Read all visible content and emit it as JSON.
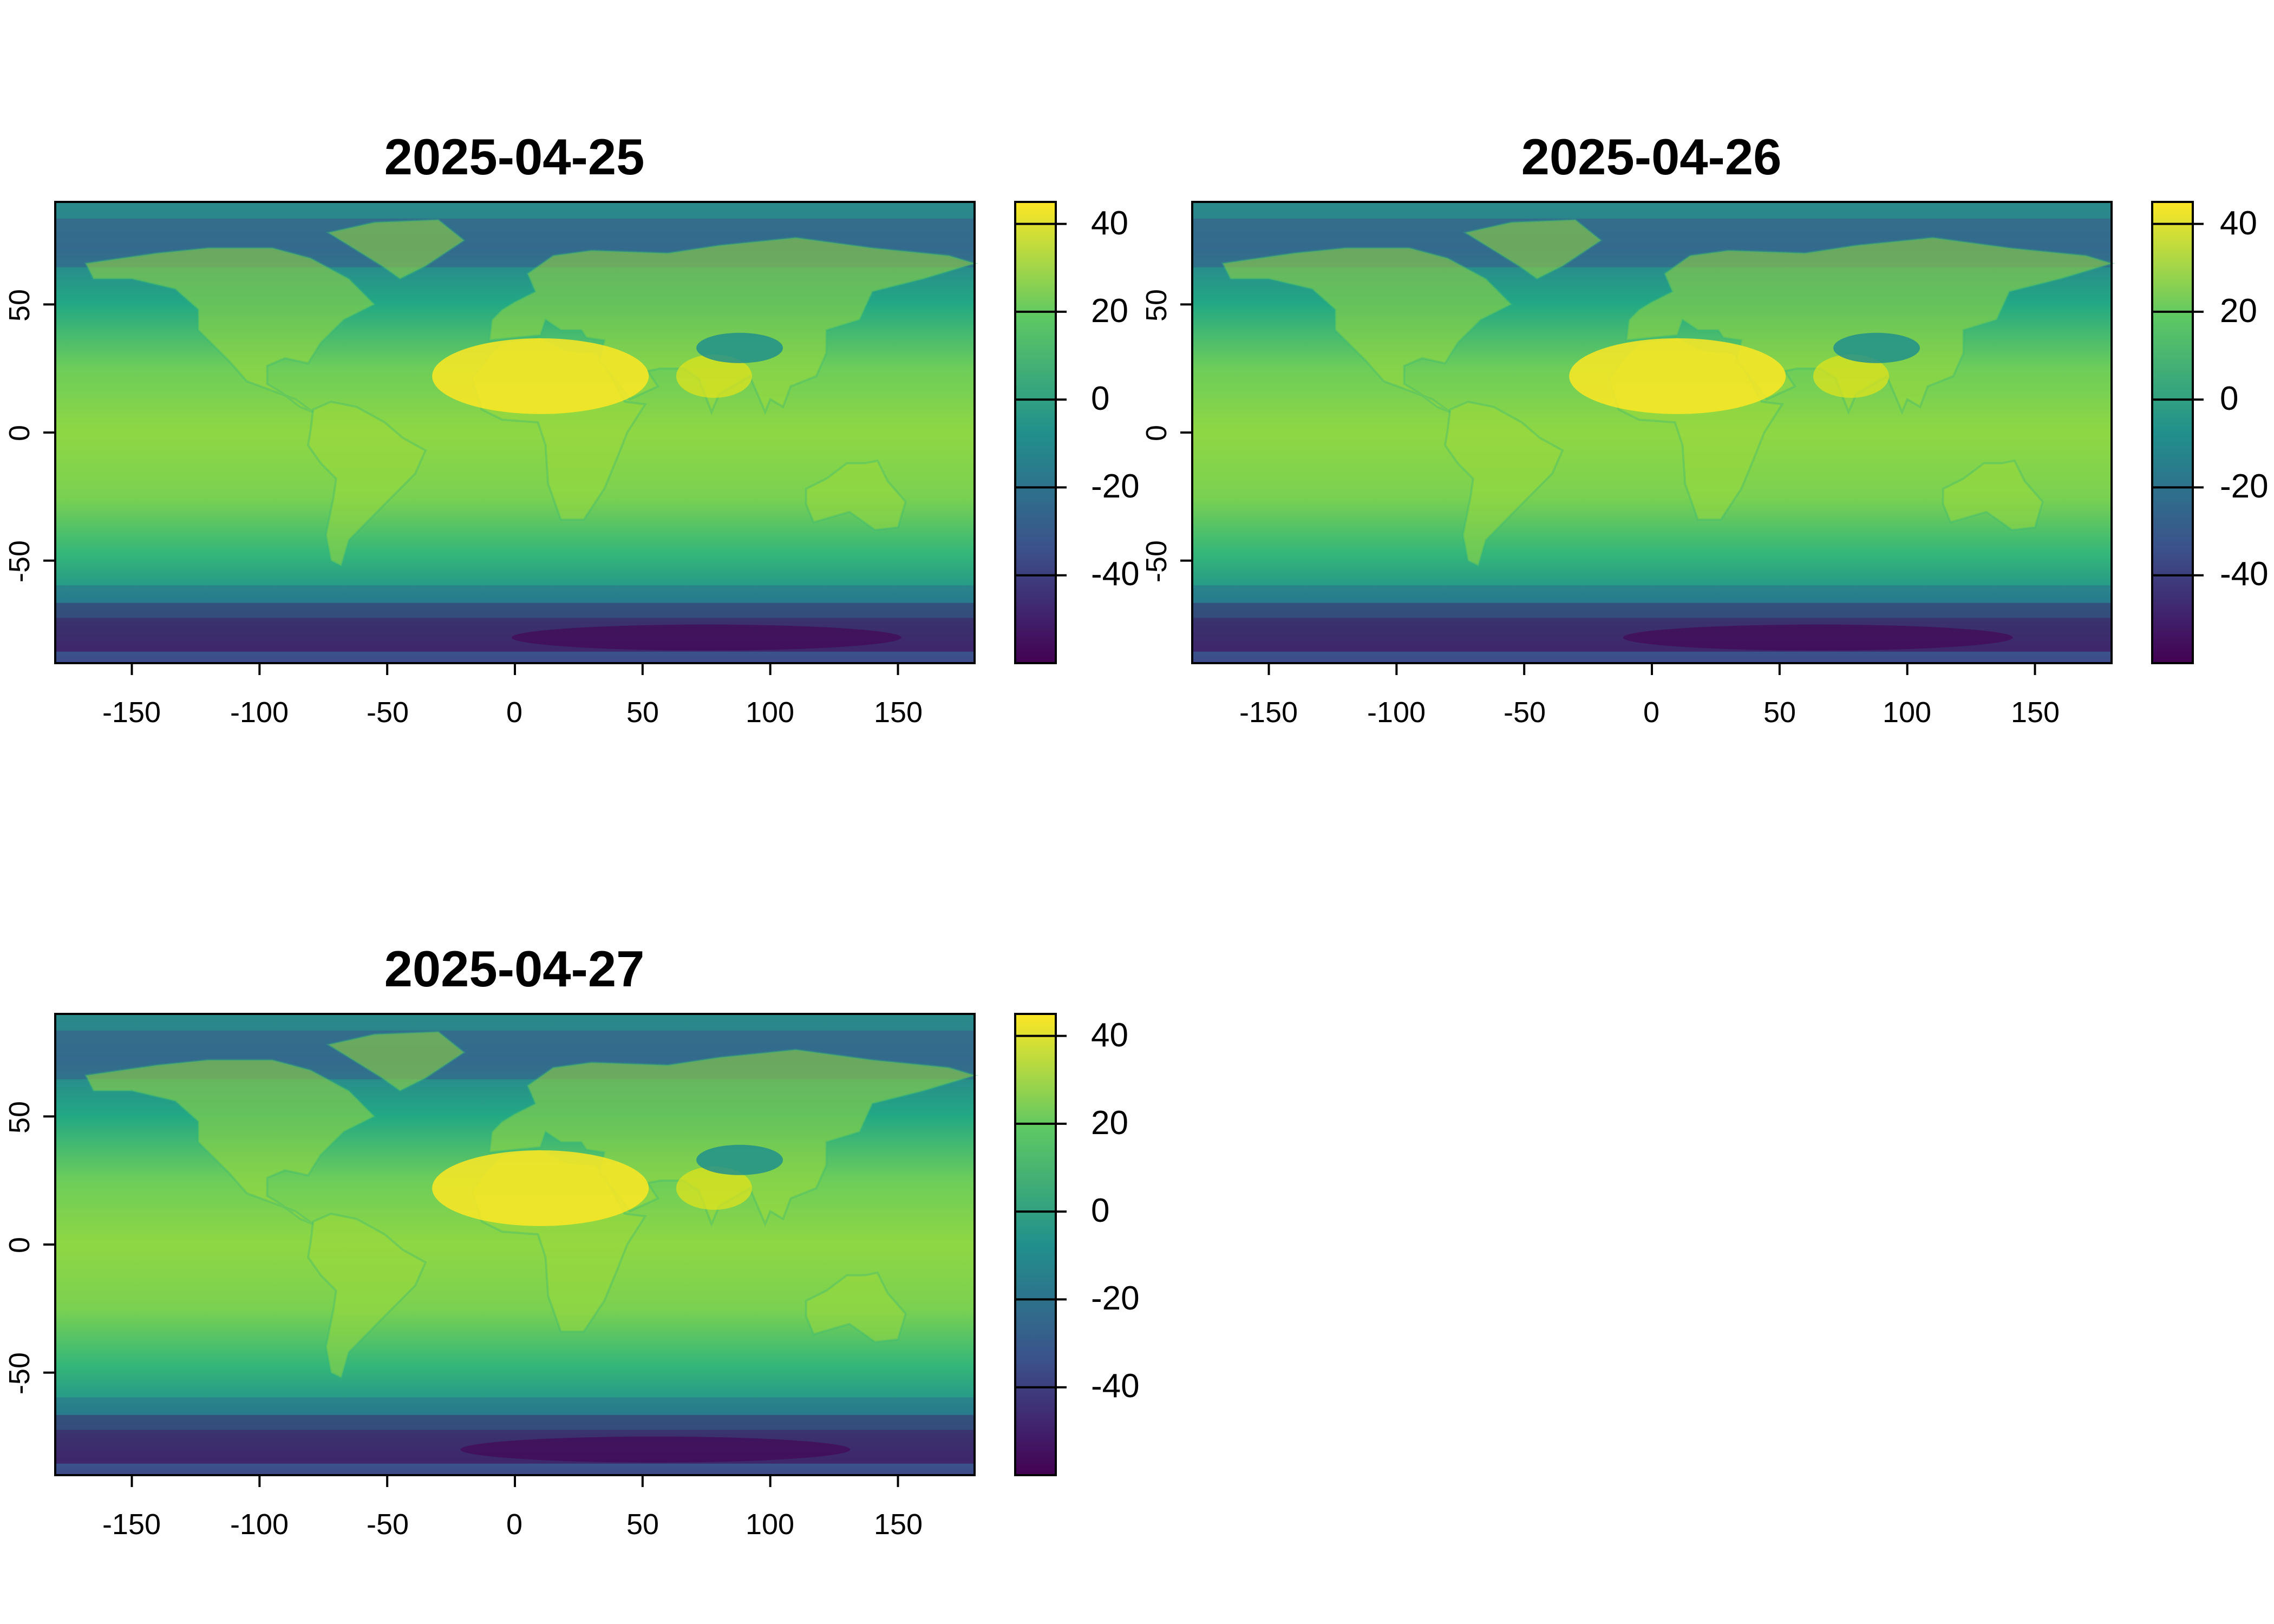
{
  "panels": [
    {
      "title": "2025-04-25",
      "x_ticks": [
        -150,
        -100,
        -50,
        0,
        50,
        100,
        150
      ],
      "y_ticks": [
        50,
        0,
        -50
      ],
      "colorbar_ticks": [
        40,
        20,
        0,
        -20,
        -40
      ]
    },
    {
      "title": "2025-04-26",
      "x_ticks": [
        -150,
        -100,
        -50,
        0,
        50,
        100,
        150
      ],
      "y_ticks": [
        50,
        0,
        -50
      ],
      "colorbar_ticks": [
        40,
        20,
        0,
        -20,
        -40
      ]
    },
    {
      "title": "2025-04-27",
      "x_ticks": [
        -150,
        -100,
        -50,
        0,
        50,
        100,
        150
      ],
      "y_ticks": [
        50,
        0,
        -50
      ],
      "colorbar_ticks": [
        40,
        20,
        0,
        -20,
        -40
      ]
    }
  ],
  "map_extent": {
    "lon": [
      -180,
      180
    ],
    "lat": [
      -90,
      90
    ]
  },
  "value_range": [
    -60,
    45
  ],
  "colormap": "viridis",
  "colormap_stops": [
    "#440154",
    "#3b528b",
    "#21908c",
    "#5dc863",
    "#fde725"
  ]
}
